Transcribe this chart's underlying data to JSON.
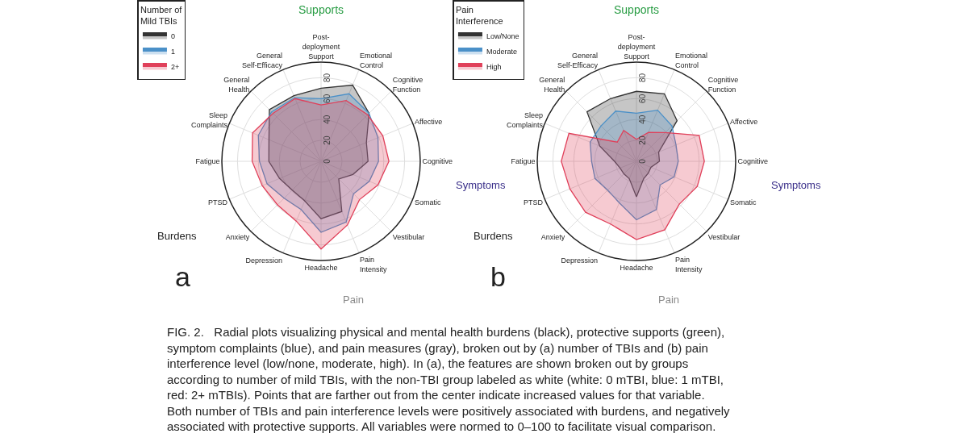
{
  "chart_data": [
    {
      "type": "radar",
      "legend_title": "Number of\nMild TBIs",
      "legend": "top left",
      "grid": true,
      "marker": "none",
      "categories": [
        "Post-\ndeployment\nSupport",
        "Emotional\nControl",
        "Cognitive\nFunction",
        "Affective",
        "Cognitive",
        "Somatic",
        "Vestibular",
        "Pain\nIntensity",
        "Headache",
        "Depression",
        "Anxiety",
        "PTSD",
        "Fatigue",
        "Sleep\nComplaints",
        "General\nHealth",
        "General\nSelf-Efficacy"
      ],
      "ylim": [
        0,
        95
      ],
      "yticks": [
        0,
        20,
        40,
        60,
        80
      ],
      "series": [
        {
          "name": "0",
          "color": "#333333",
          "values": [
            70,
            79,
            65,
            47,
            45,
            33,
            24,
            52,
            55,
            41,
            39,
            43,
            50,
            54,
            70,
            68
          ]
        },
        {
          "name": "1",
          "color": "#4a90c8",
          "values": [
            60,
            70,
            65,
            59,
            55,
            50,
            44,
            63,
            68,
            50,
            50,
            56,
            59,
            65,
            67,
            66
          ]
        },
        {
          "name": "2+",
          "color": "#e0405a",
          "values": [
            54,
            63,
            63,
            64,
            65,
            59,
            52,
            66,
            84,
            62,
            59,
            61,
            66,
            71,
            65,
            65
          ]
        }
      ],
      "annotations": [
        "a",
        "Supports",
        "Symptoms",
        "Pain",
        "Burdens"
      ]
    },
    {
      "type": "radar",
      "legend_title": "Pain\nInterference",
      "legend": "top left",
      "grid": true,
      "marker": "none",
      "categories": [
        "Post-\ndeployment\nSupport",
        "Emotional\nControl",
        "Cognitive\nFunction",
        "Affective",
        "Cognitive",
        "Somatic",
        "Vestibular",
        "Pain\nIntensity",
        "Headache",
        "Depression",
        "Anxiety",
        "PTSD",
        "Fatigue",
        "Sleep\nComplaints",
        "General\nHealth",
        "General\nSelf-Efficacy"
      ],
      "ylim": [
        0,
        95
      ],
      "yticks": [
        0,
        20,
        40,
        60,
        80
      ],
      "series": [
        {
          "name": "Low/None",
          "color": "#333333",
          "values": [
            67,
            70,
            55,
            23,
            22,
            15,
            16,
            18,
            34,
            18,
            17,
            17,
            21,
            38,
            67,
            65
          ]
        },
        {
          "name": "Moderate",
          "color": "#4a90c8",
          "values": [
            46,
            53,
            48,
            41,
            40,
            39,
            32,
            50,
            56,
            43,
            39,
            43,
            43,
            48,
            48,
            52
          ]
        },
        {
          "name": "High",
          "color": "#e0405a",
          "values": [
            21,
            30,
            39,
            65,
            65,
            63,
            58,
            71,
            75,
            65,
            69,
            69,
            72,
            70,
            26,
            32
          ]
        }
      ],
      "annotations": [
        "b",
        "Supports",
        "Symptoms",
        "Pain",
        "Burdens",
        "FIG. 2.   Radial plots visualizing physical and mental health burdens (black), protective supports (green),\nsymptom complaints (blue), and pain measures (gray), broken out by (a) number of TBIs and (b) pain\ninterference level (low/none, moderate, high). In (a), the features are shown broken out by groups\naccording to number of mild TBIs, with the non-TBI group labeled as white (white: 0 mTBI, blue: 1 mTBI,\nred: 2+ mTBIs). Points that are farther out from the center indicate increased values for that variable.\nBoth number of TBIs and pain interference levels were positively associated with burdens, and negatively\nassociated with protective supports. All variables were normed to 0–100 to facilitate visual comparison."
      ]
    }
  ]
}
